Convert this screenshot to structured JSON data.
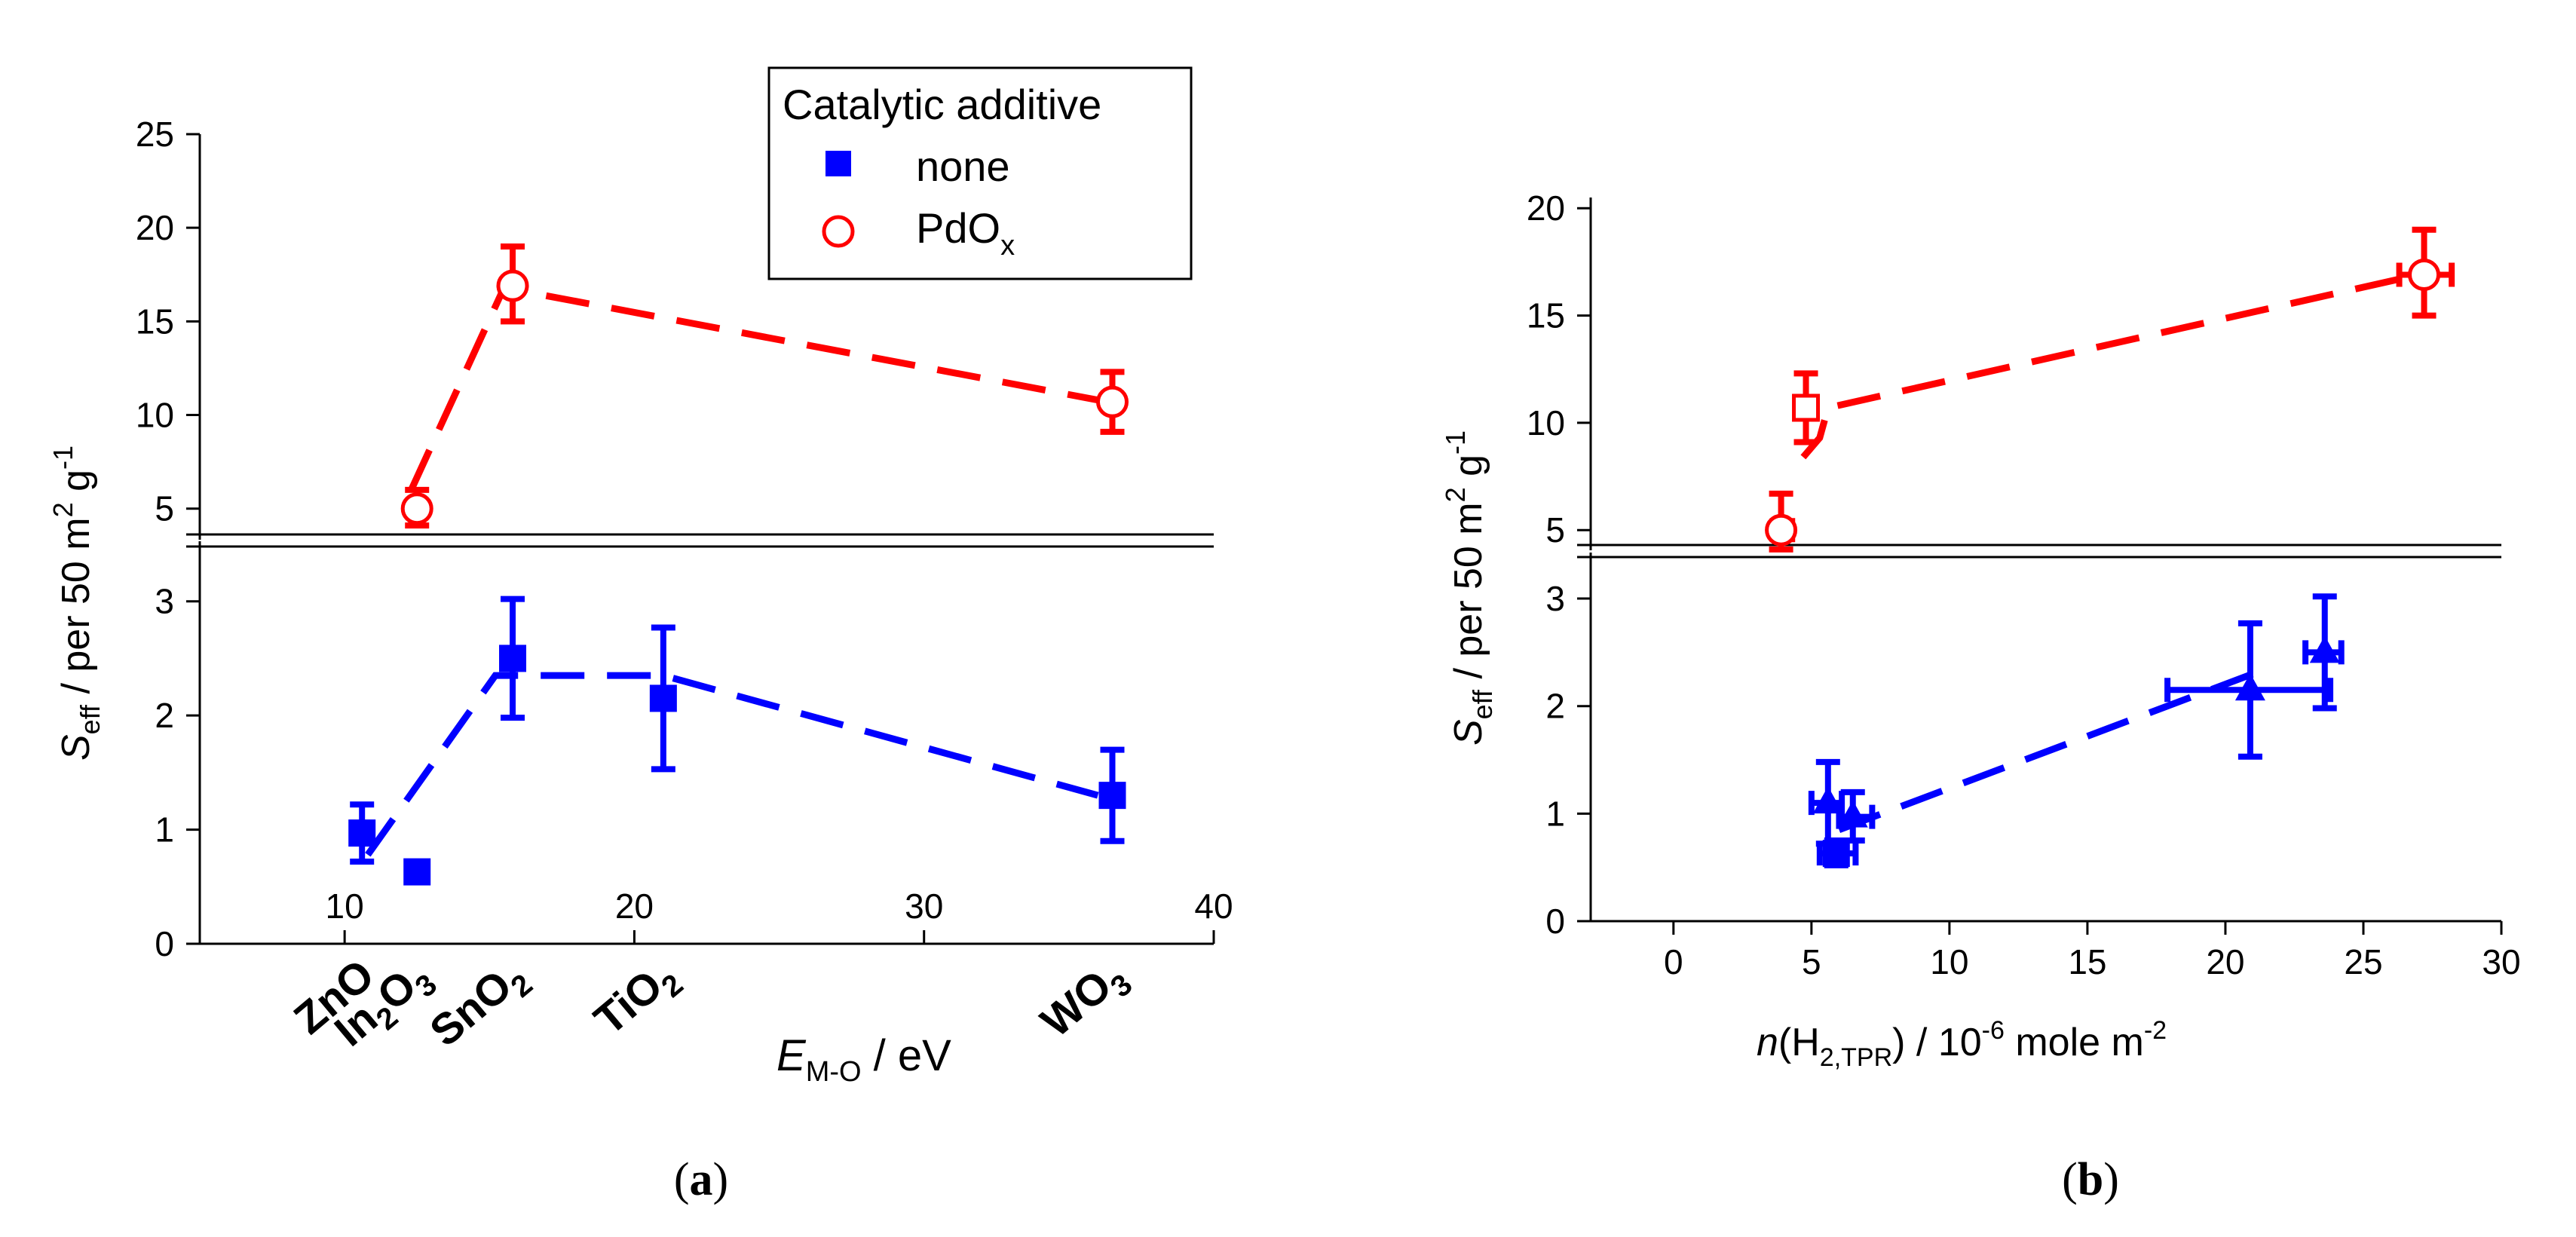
{
  "colors": {
    "red": "#ff0000",
    "blue": "#0000ff",
    "axis": "#000000"
  },
  "chart_data": [
    {
      "type": "scatter",
      "panel": "(a)",
      "legend": {
        "title": "Catalytic additive",
        "entries": [
          {
            "label": "none",
            "marker": "filled-square",
            "color": "#0000ff"
          },
          {
            "label_main": "PdO",
            "label_sub": "x",
            "marker": "open-circle",
            "color": "#ff0000"
          }
        ]
      },
      "ylabel": {
        "main": "S",
        "sub": "eff",
        "mid": " / per 50 m",
        "sup1": "2",
        "mid2": " g",
        "sup2": "-1"
      },
      "xlabel": {
        "main": "E",
        "sub": "M-O",
        "rest": " / eV"
      },
      "x_axis": {
        "range": [
          5,
          40
        ],
        "ticks": [
          "10",
          "20",
          "30",
          "40"
        ],
        "tick_values": [
          10,
          20,
          30,
          40
        ]
      },
      "y_axis_lower": {
        "range": [
          0,
          3.5
        ],
        "ticks": [
          "0",
          "1",
          "2",
          "3"
        ],
        "tick_values": [
          0,
          1,
          2,
          3
        ]
      },
      "y_axis_upper": {
        "range": [
          3.5,
          25
        ],
        "ticks": [
          "5",
          "10",
          "15",
          "20",
          "25"
        ],
        "tick_values": [
          5,
          10,
          15,
          20,
          25
        ]
      },
      "categories": [
        {
          "main": "ZnO",
          "sub": "",
          "x": 10.6
        },
        {
          "main": "In",
          "sub": "2",
          "mid": "O",
          "sub2": "3",
          "x": 12.5
        },
        {
          "main": "SnO",
          "sub": "2",
          "x": 15.8
        },
        {
          "main": "TiO",
          "sub": "2",
          "x": 21.0
        },
        {
          "main": "WO",
          "sub": "3",
          "x": 36.5
        }
      ],
      "series": [
        {
          "name": "none",
          "points": [
            {
              "x": 10.6,
              "y": 0.97,
              "yerr": [
                0.72,
                1.22
              ]
            },
            {
              "x": 12.5,
              "y": 0.63,
              "yerr": [
                0.55,
                0.72
              ]
            },
            {
              "x": 15.8,
              "y": 2.5,
              "yerr": [
                1.98,
                3.02
              ]
            },
            {
              "x": 21.0,
              "y": 2.15,
              "yerr": [
                1.53,
                2.77
              ]
            },
            {
              "x": 36.5,
              "y": 1.3,
              "yerr": [
                0.9,
                1.7
              ]
            }
          ],
          "trend": [
            [
              10.8,
              0.78
            ],
            [
              15.2,
              2.35
            ],
            [
              21.0,
              2.35
            ],
            [
              36.0,
              1.3
            ]
          ]
        },
        {
          "name": "PdOx",
          "points": [
            {
              "x": 12.5,
              "y": 5.0,
              "yerr": [
                4.1,
                6.0
              ]
            },
            {
              "x": 15.8,
              "y": 16.9,
              "yerr": [
                15.0,
                19.0
              ]
            },
            {
              "x": 36.5,
              "y": 10.7,
              "yerr": [
                9.1,
                12.3
              ]
            }
          ],
          "trend": [
            [
              12.3,
              6.0
            ],
            [
              15.5,
              16.8
            ],
            [
              36.0,
              10.8
            ]
          ]
        }
      ]
    },
    {
      "type": "scatter",
      "panel": "(b)",
      "ylabel": {
        "main": "S",
        "sub": "eff",
        "mid": " / per 50 m",
        "sup1": "2",
        "mid2": " g",
        "sup2": "-1"
      },
      "xlabel": {
        "main": "n",
        "mid": "(H",
        "sub": "2,TPR",
        "rest": ") / 10",
        "sup": "-6",
        "rest2": " mole m",
        "sup2": "-2"
      },
      "x_axis": {
        "range": [
          -3,
          30
        ],
        "ticks": [
          "0",
          "5",
          "10",
          "15",
          "20",
          "25",
          "30"
        ],
        "tick_values": [
          0,
          5,
          10,
          15,
          20,
          25,
          30
        ]
      },
      "y_axis_lower": {
        "range": [
          0,
          3.4
        ],
        "ticks": [
          "0",
          "1",
          "2",
          "3"
        ],
        "tick_values": [
          0,
          1,
          2,
          3
        ]
      },
      "y_axis_upper": {
        "range": [
          4.2,
          20.5
        ],
        "ticks": [
          "5",
          "10",
          "15",
          "20"
        ],
        "tick_values": [
          5,
          10,
          15,
          20
        ]
      },
      "series": [
        {
          "name": "none",
          "points": [
            {
              "x": 5.6,
              "y": 1.1,
              "yerr": [
                0.72,
                1.48
              ],
              "xerr": [
                5.0,
                6.1
              ],
              "marker": "triangle"
            },
            {
              "x": 6.5,
              "y": 0.97,
              "yerr": [
                0.75,
                1.2
              ],
              "xerr": [
                6.0,
                7.2
              ],
              "marker": "triangle"
            },
            {
              "x": 5.9,
              "y": 0.63,
              "yerr": [
                0.52,
                0.75
              ],
              "xerr": [
                5.3,
                6.6
              ],
              "marker": "square"
            },
            {
              "x": 20.9,
              "y": 2.15,
              "yerr": [
                1.53,
                2.77
              ],
              "xerr": [
                17.9,
                23.8
              ],
              "marker": "triangle"
            },
            {
              "x": 23.6,
              "y": 2.5,
              "yerr": [
                1.98,
                3.02
              ],
              "xerr": [
                22.9,
                24.2
              ],
              "marker": "triangle"
            }
          ],
          "trend": [
            [
              6.0,
              0.85
            ],
            [
              21.0,
              2.3
            ]
          ]
        },
        {
          "name": "PdOx",
          "points": [
            {
              "x": 3.9,
              "y": 5.0,
              "yerr": [
                4.1,
                6.7
              ],
              "xerr": [
                3.6,
                4.3
              ],
              "marker": "open-circle"
            },
            {
              "x": 4.8,
              "y": 10.7,
              "yerr": [
                9.1,
                12.3
              ],
              "xerr": [
                4.5,
                5.1
              ],
              "marker": "open-square"
            },
            {
              "x": 27.2,
              "y": 16.9,
              "yerr": [
                15.0,
                19.0
              ],
              "xerr": [
                26.3,
                28.2
              ],
              "marker": "open-circle"
            }
          ],
          "trend": [
            [
              4.7,
              8.4
            ],
            [
              5.3,
              9.3
            ],
            [
              5.6,
              10.7
            ],
            [
              27.0,
              16.9
            ]
          ]
        }
      ]
    }
  ]
}
